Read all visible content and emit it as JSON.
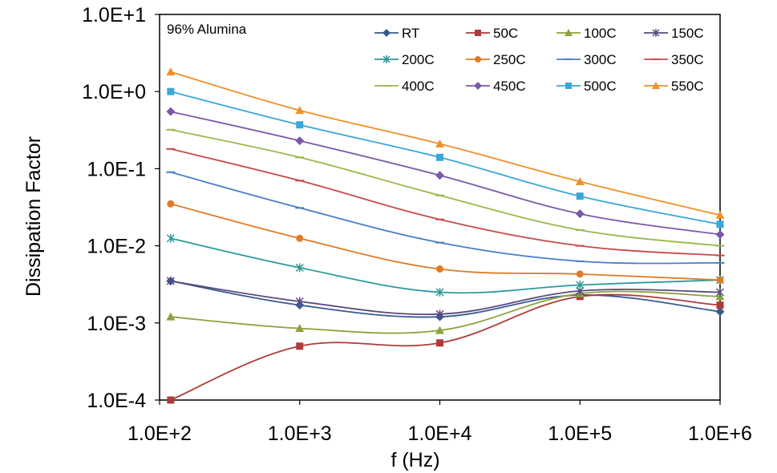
{
  "chart_data": {
    "type": "line",
    "title": "",
    "annotation": "96% Alumina",
    "xlabel": "f (Hz)",
    "ylabel": "Dissipation Factor",
    "x_scale": "log",
    "y_scale": "log",
    "xlim": [
      100,
      1000000
    ],
    "ylim": [
      0.0001,
      10
    ],
    "x_tick_labels": [
      "1.0E+2",
      "1.0E+3",
      "1.0E+4",
      "1.0E+5",
      "1.0E+6"
    ],
    "y_tick_labels": [
      "1.0E-4",
      "1.0E-3",
      "1.0E-2",
      "1.0E-1",
      "1.0E+0",
      "1.0E+1"
    ],
    "grid": false,
    "legend_position": "top-right",
    "x": [
      120,
      1000,
      10000,
      100000,
      1000000
    ],
    "series": [
      {
        "name": "RT",
        "color": "#3a5a8f",
        "marker": "diamond",
        "values": [
          0.0035,
          0.0017,
          0.0012,
          0.0023,
          0.0014
        ]
      },
      {
        "name": "50C",
        "color": "#b03a3a",
        "marker": "square",
        "values": [
          0.0001,
          0.0005,
          0.00055,
          0.0022,
          0.0017
        ]
      },
      {
        "name": "100C",
        "color": "#8ca23c",
        "marker": "triangle",
        "values": [
          0.0012,
          0.00085,
          0.0008,
          0.0024,
          0.0022
        ]
      },
      {
        "name": "150C",
        "color": "#5a4a80",
        "marker": "star",
        "values": [
          0.0035,
          0.0019,
          0.0013,
          0.0026,
          0.0025
        ]
      },
      {
        "name": "200C",
        "color": "#2e9a9a",
        "marker": "star",
        "values": [
          0.0125,
          0.0052,
          0.0025,
          0.0031,
          0.0036
        ]
      },
      {
        "name": "250C",
        "color": "#e07b25",
        "marker": "circle",
        "values": [
          0.035,
          0.0125,
          0.005,
          0.0043,
          0.0036
        ]
      },
      {
        "name": "300C",
        "color": "#4a7dc8",
        "marker": "dash",
        "values": [
          0.09,
          0.031,
          0.011,
          0.0063,
          0.006
        ]
      },
      {
        "name": "350C",
        "color": "#c84a4a",
        "marker": "dash",
        "values": [
          0.18,
          0.07,
          0.022,
          0.01,
          0.0075
        ]
      },
      {
        "name": "400C",
        "color": "#9ab84a",
        "marker": "dash",
        "values": [
          0.32,
          0.14,
          0.045,
          0.016,
          0.01
        ]
      },
      {
        "name": "450C",
        "color": "#7a5aa8",
        "marker": "diamond",
        "values": [
          0.55,
          0.23,
          0.082,
          0.026,
          0.014
        ]
      },
      {
        "name": "500C",
        "color": "#38a8d8",
        "marker": "square",
        "values": [
          1.0,
          0.37,
          0.14,
          0.044,
          0.019
        ]
      },
      {
        "name": "550C",
        "color": "#f0902a",
        "marker": "triangle",
        "values": [
          1.8,
          0.57,
          0.21,
          0.068,
          0.025
        ]
      }
    ]
  }
}
